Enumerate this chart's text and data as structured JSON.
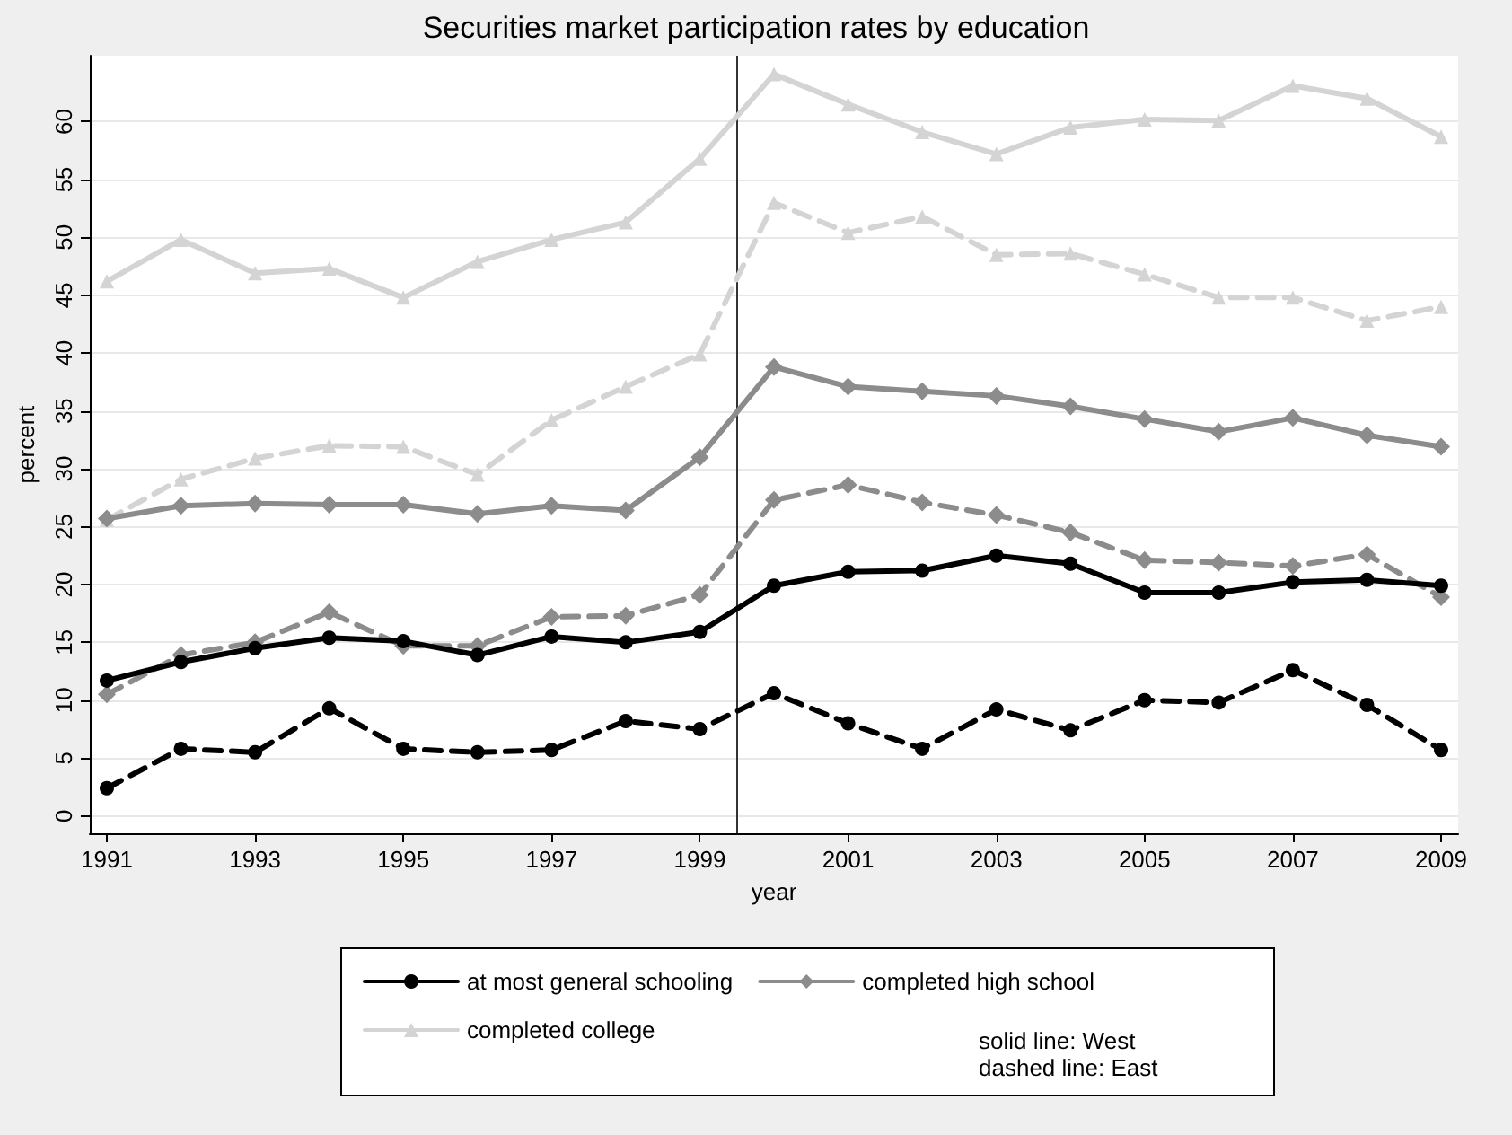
{
  "chart_data": {
    "type": "line",
    "title": "Securities market participation rates by education",
    "xlabel": "year",
    "ylabel": "percent",
    "x": [
      1991,
      1992,
      1993,
      1994,
      1995,
      1996,
      1997,
      1998,
      1999,
      2000,
      2001,
      2002,
      2003,
      2004,
      2005,
      2006,
      2007,
      2008,
      2009
    ],
    "xlim": [
      1990.77,
      2009.23
    ],
    "xticks": [
      1991,
      1993,
      1995,
      1997,
      1999,
      2001,
      2003,
      2005,
      2007,
      2009
    ],
    "ylim": [
      -1.5,
      65.7
    ],
    "yticks": [
      0,
      5,
      10,
      15,
      20,
      25,
      30,
      35,
      40,
      45,
      50,
      55,
      60
    ],
    "grid": "y",
    "legend": "bottom",
    "ref_lines": [
      {
        "axis": "x",
        "value": 1999.5,
        "color": "#333333"
      }
    ],
    "annotations": [
      "solid line: West\ndashed line: East"
    ],
    "series": [
      {
        "name": "at most general schooling",
        "color": "#000000",
        "marker": "circle",
        "line_style": "solid",
        "values": [
          11.7,
          13.3,
          14.5,
          15.4,
          15.1,
          13.9,
          15.5,
          15.0,
          15.9,
          19.9,
          21.1,
          21.2,
          22.5,
          21.8,
          19.3,
          19.3,
          20.2,
          20.4,
          19.9
        ]
      },
      {
        "name": "completed high school",
        "color": "#8c8c8c",
        "marker": "diamond",
        "line_style": "solid",
        "values": [
          25.7,
          26.8,
          27.0,
          26.9,
          26.9,
          26.1,
          26.8,
          26.4,
          31.0,
          38.8,
          37.1,
          36.7,
          36.3,
          35.4,
          34.3,
          33.2,
          34.4,
          32.9,
          31.9
        ]
      },
      {
        "name": "completed college",
        "color": "#d4d4d4",
        "marker": "triangle",
        "line_style": "solid",
        "values": [
          46.2,
          49.8,
          46.9,
          47.3,
          44.8,
          47.9,
          49.8,
          51.3,
          56.8,
          64.1,
          61.5,
          59.1,
          57.2,
          59.5,
          60.2,
          60.1,
          63.1,
          62.0,
          58.7
        ]
      },
      {
        "color": "#000000",
        "marker": "circle",
        "line_style": "dashed",
        "values": [
          2.4,
          5.8,
          5.5,
          9.3,
          5.8,
          5.5,
          5.7,
          8.2,
          7.5,
          10.6,
          8.0,
          5.8,
          9.2,
          7.4,
          10.0,
          9.8,
          12.6,
          9.6,
          5.7
        ]
      },
      {
        "color": "#8c8c8c",
        "marker": "diamond",
        "line_style": "dashed",
        "values": [
          10.5,
          13.9,
          15.0,
          17.6,
          14.7,
          14.7,
          17.2,
          17.3,
          19.1,
          27.3,
          28.6,
          27.1,
          26.0,
          24.5,
          22.1,
          21.9,
          21.6,
          22.6,
          18.9
        ]
      },
      {
        "color": "#d4d4d4",
        "marker": "triangle",
        "line_style": "dashed",
        "values": [
          25.6,
          29.1,
          30.9,
          32.0,
          31.9,
          29.5,
          34.2,
          37.1,
          39.9,
          53.0,
          50.4,
          51.8,
          48.5,
          48.6,
          46.8,
          44.8,
          44.8,
          42.8,
          44.0
        ]
      }
    ]
  }
}
